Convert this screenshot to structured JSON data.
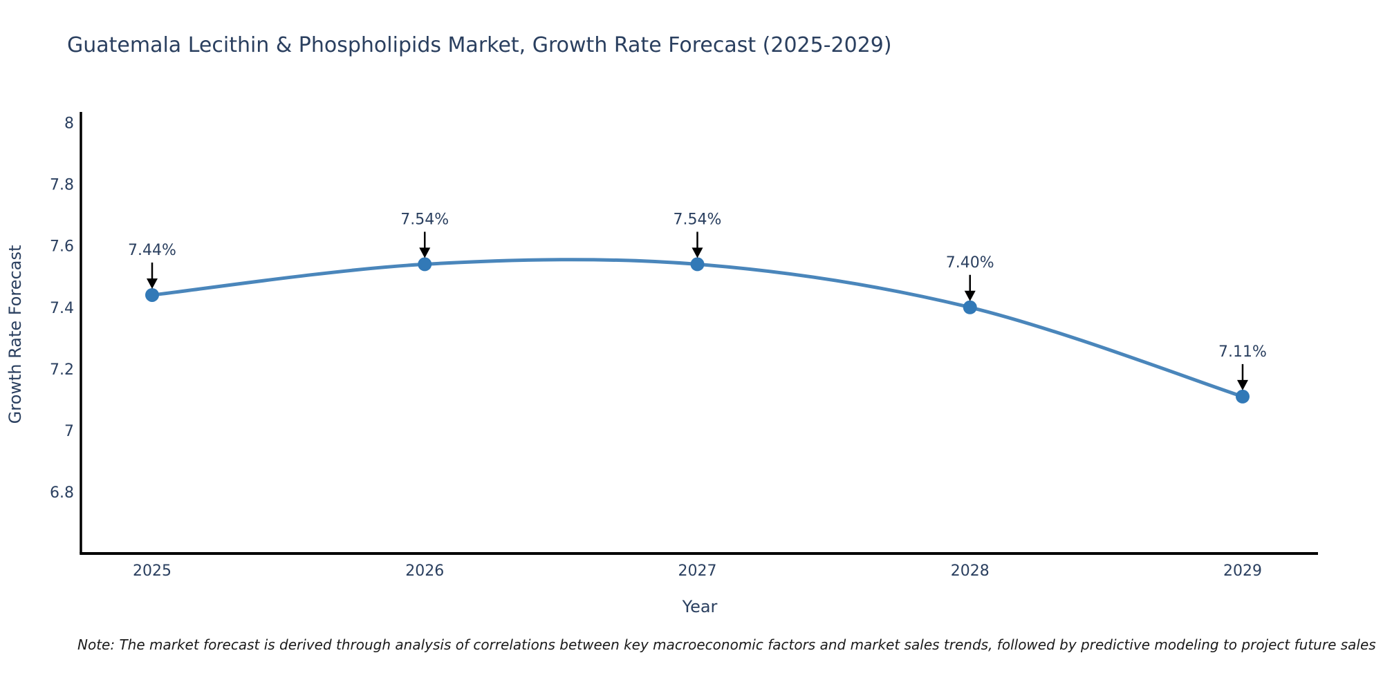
{
  "title": "Guatemala Lecithin & Phospholipids Market, Growth Rate Forecast (2025-2029)",
  "note": "Note: The market forecast is derived through analysis of correlations between key macroeconomic factors and market sales trends, followed by predictive modeling to project future sales",
  "chart_data": {
    "type": "line",
    "title": "Guatemala Lecithin & Phospholipids Market, Growth Rate Forecast (2025-2029)",
    "categories": [
      "2025",
      "2026",
      "2027",
      "2028",
      "2029"
    ],
    "values": [
      7.44,
      7.54,
      7.54,
      7.4,
      7.11
    ],
    "point_labels": [
      "7.44%",
      "7.54%",
      "7.54%",
      "7.40%",
      "7.11%"
    ],
    "xlabel": "Year",
    "ylabel": "Growth Rate Forecast",
    "yticks": [
      8,
      7.8,
      7.6,
      7.4,
      7.2,
      7,
      6.8
    ],
    "ylim": [
      6.6,
      8.035
    ],
    "grid": false,
    "legend": "none",
    "colors": {
      "line": "#4a86bb",
      "marker": "#3279b7",
      "axis": "#000000",
      "tick_text": "#2a3f5f",
      "annotation_text": "#2a3f5f",
      "annotation_arrow": "#000000"
    }
  }
}
